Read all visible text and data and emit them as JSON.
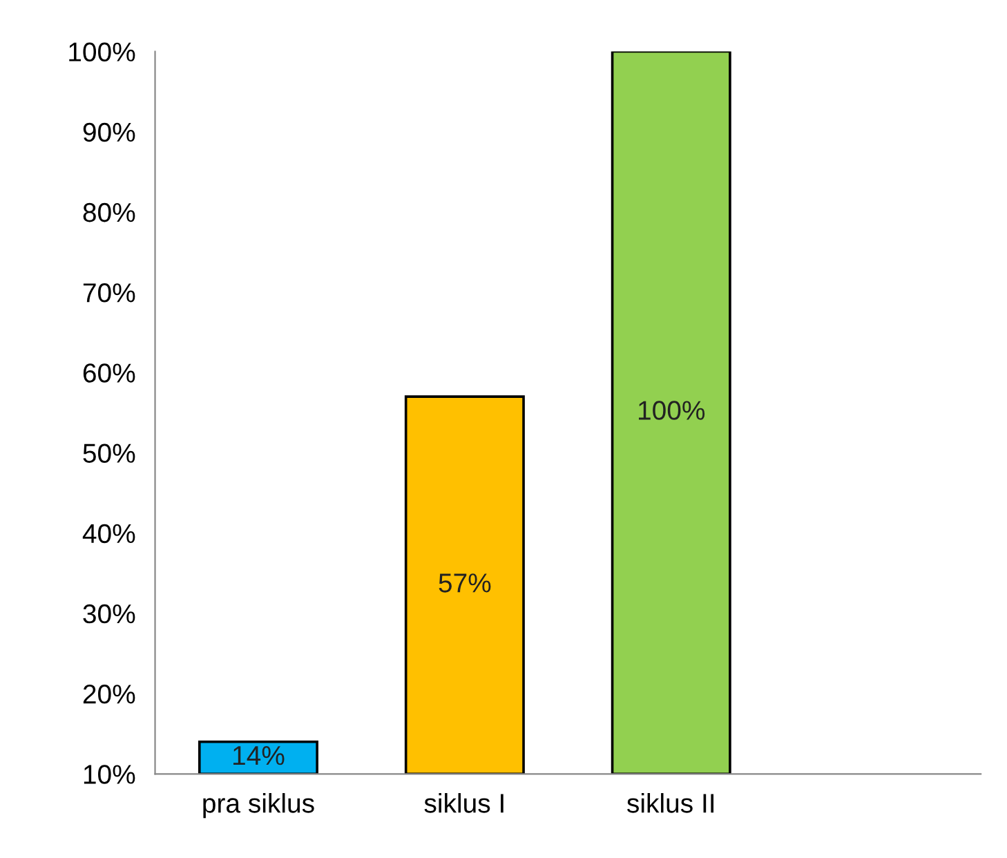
{
  "chart_data": {
    "type": "bar",
    "categories": [
      "pra siklus",
      "siklus I",
      "siklus II",
      null
    ],
    "values": [
      14,
      57,
      100,
      null
    ],
    "colors": [
      "#00b0f0",
      "#ffc000",
      "#92d050",
      "#92d050"
    ],
    "value_labels": [
      "14%",
      "57%",
      "100%",
      null
    ],
    "ylim": [
      10,
      100
    ],
    "yticks": [
      {
        "value": 10,
        "label": "10%"
      },
      {
        "value": 20,
        "label": "20%"
      },
      {
        "value": 30,
        "label": "30%"
      },
      {
        "value": 40,
        "label": "40%"
      },
      {
        "value": 50,
        "label": "50%"
      },
      {
        "value": 60,
        "label": "60%"
      },
      {
        "value": 70,
        "label": "70%"
      },
      {
        "value": 80,
        "label": "80%"
      },
      {
        "value": 90,
        "label": "90%"
      },
      {
        "value": 100,
        "label": "100%"
      }
    ],
    "grid": false,
    "legend": false
  }
}
